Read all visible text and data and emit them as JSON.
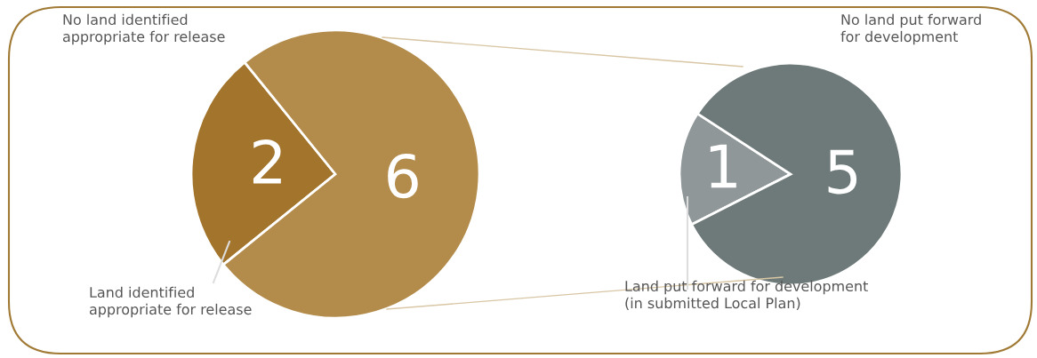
{
  "chart_data": [
    {
      "type": "pie",
      "categories": [
        "Land identified\nappropriate for release",
        "No land identified\nappropriate for release"
      ],
      "values": [
        2,
        6
      ],
      "colors": [
        "#a2742c",
        "#b38b4a"
      ],
      "data_labels": true
    },
    {
      "type": "pie",
      "categories": [
        "Land put forward for development\n(in submitted Local Plan)",
        "No land put forward\nfor development"
      ],
      "values": [
        1,
        5
      ],
      "colors": [
        "#8f9799",
        "#6e7a79"
      ],
      "data_labels": true
    }
  ]
}
